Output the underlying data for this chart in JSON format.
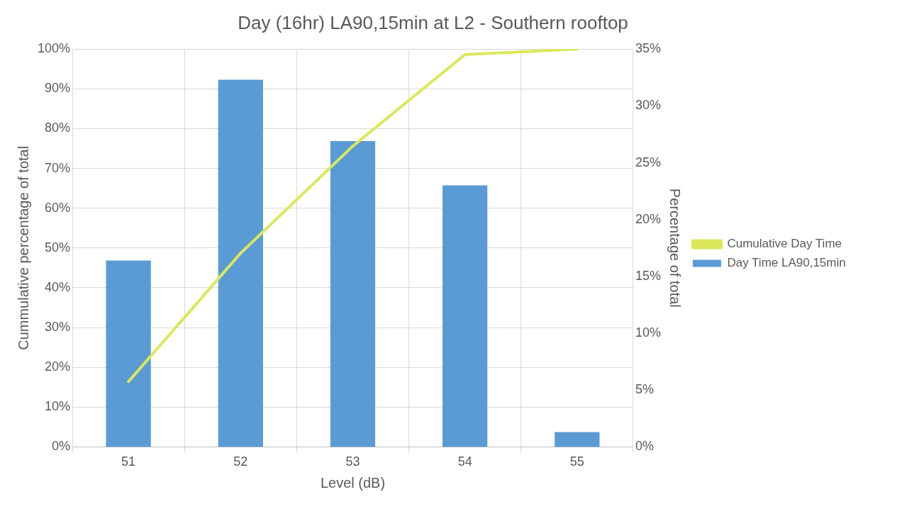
{
  "chart_data": {
    "type": "bar",
    "title": "Day (16hr) LA90,15min at L2 - Southern rooftop",
    "xlabel": "Level (dB)",
    "ylabel": "Cummulative percentage of total",
    "y2label": "Percentage of total",
    "categories": [
      "51",
      "52",
      "53",
      "54",
      "55"
    ],
    "series": [
      {
        "name": "Day Time LA90,15min",
        "axis": "y2",
        "color": "#5b9bd5",
        "values": [
          16.4,
          32.3,
          26.9,
          23.0,
          1.3
        ]
      },
      {
        "name": "Cumulative Day Time",
        "type": "line",
        "axis": "y",
        "color": "#dbe85a",
        "values": [
          16.4,
          48.7,
          75.6,
          98.6,
          100
        ]
      }
    ],
    "ylim": [
      0,
      100
    ],
    "yticks": [
      {
        "value": 0,
        "label": "0%"
      },
      {
        "value": 10,
        "label": "10%"
      },
      {
        "value": 20,
        "label": "20%"
      },
      {
        "value": 30,
        "label": "30%"
      },
      {
        "value": 40,
        "label": "40%"
      },
      {
        "value": 50,
        "label": "50%"
      },
      {
        "value": 60,
        "label": "60%"
      },
      {
        "value": 70,
        "label": "70%"
      },
      {
        "value": 80,
        "label": "80%"
      },
      {
        "value": 90,
        "label": "90%"
      },
      {
        "value": 100,
        "label": "100%"
      }
    ],
    "y2lim": [
      0,
      35
    ],
    "y2ticks": [
      {
        "value": 0,
        "label": "0%"
      },
      {
        "value": 5,
        "label": "5%"
      },
      {
        "value": 10,
        "label": "10%"
      },
      {
        "value": 15,
        "label": "15%"
      },
      {
        "value": 20,
        "label": "20%"
      },
      {
        "value": 25,
        "label": "25%"
      },
      {
        "value": 30,
        "label": "30%"
      },
      {
        "value": 35,
        "label": "35%"
      }
    ],
    "grid": true,
    "legend": "right",
    "marker": "none",
    "line_style": "solid"
  }
}
